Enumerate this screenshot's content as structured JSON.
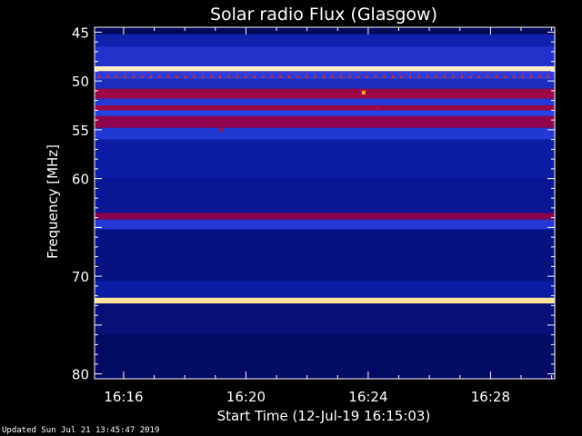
{
  "chart_data": {
    "type": "heatmap",
    "title": "Solar radio Flux (Glasgow)",
    "xlabel": "Start Time (12-Jul-19 16:15:03)",
    "ylabel": "Frequency [MHz]",
    "x_ticks": [
      "16:16",
      "16:20",
      "16:24",
      "16:28"
    ],
    "x_tick_minutes": [
      16,
      20,
      24,
      28
    ],
    "xlim_minutes": [
      15.05,
      30.1
    ],
    "y_ticks": [
      45,
      50,
      55,
      60,
      65,
      70,
      75,
      80
    ],
    "y_tick_labels": [
      "45",
      "50",
      "55",
      "60",
      "",
      "70",
      "",
      "80"
    ],
    "ylim": [
      44.5,
      80.5
    ],
    "y_inverted": true,
    "colormap": [
      "#00003a",
      "#0a1a9e",
      "#2a40e0",
      "#8a0050",
      "#cc1030",
      "#ffb000",
      "#fff8e0"
    ],
    "bands": [
      {
        "freq": [
          44.6,
          45.2
        ],
        "level": 0.05
      },
      {
        "freq": [
          45.2,
          46.5
        ],
        "level": 0.2
      },
      {
        "freq": [
          46.5,
          48.5
        ],
        "level": 0.28
      },
      {
        "freq": [
          48.5,
          49.0
        ],
        "level": 0.98
      },
      {
        "freq": [
          49.0,
          49.8
        ],
        "level": 0.35
      },
      {
        "freq": [
          49.8,
          50.8
        ],
        "level": 0.25
      },
      {
        "freq": [
          50.8,
          51.8
        ],
        "level": 0.55
      },
      {
        "freq": [
          51.8,
          52.5
        ],
        "level": 0.3
      },
      {
        "freq": [
          52.5,
          53.0
        ],
        "level": 0.55
      },
      {
        "freq": [
          53.0,
          53.6
        ],
        "level": 0.33
      },
      {
        "freq": [
          53.6,
          54.8
        ],
        "level": 0.52
      },
      {
        "freq": [
          54.8,
          56.0
        ],
        "level": 0.3
      },
      {
        "freq": [
          56.0,
          60.0
        ],
        "level": 0.18
      },
      {
        "freq": [
          60.0,
          63.5
        ],
        "level": 0.15
      },
      {
        "freq": [
          63.5,
          64.2
        ],
        "level": 0.5
      },
      {
        "freq": [
          64.2,
          65.2
        ],
        "level": 0.3
      },
      {
        "freq": [
          65.2,
          70.5
        ],
        "level": 0.12
      },
      {
        "freq": [
          70.5,
          72.2
        ],
        "level": 0.18
      },
      {
        "freq": [
          72.2,
          72.8
        ],
        "level": 0.95
      },
      {
        "freq": [
          72.8,
          76.0
        ],
        "level": 0.1
      },
      {
        "freq": [
          76.0,
          80.4
        ],
        "level": 0.07
      }
    ],
    "bursts": [
      {
        "time_min": 23.85,
        "freq": 51.2,
        "level": 0.85
      },
      {
        "time_min": 19.2,
        "freq": 55.0,
        "level": 0.6
      },
      {
        "time_min": 24.3,
        "freq": 52.8,
        "level": 0.6
      }
    ]
  },
  "footer": {
    "updated": "Updated Sun Jul 21 13:45:47 2019"
  }
}
